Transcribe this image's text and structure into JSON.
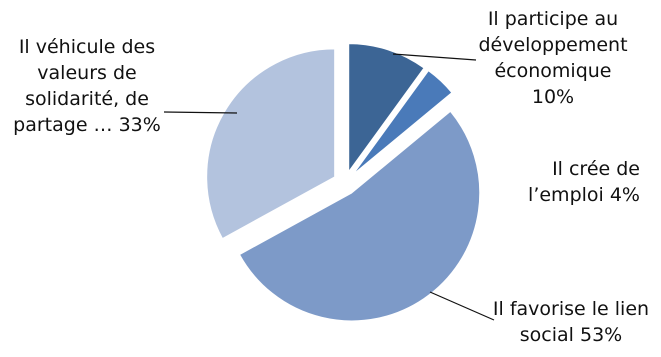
{
  "chart_data": {
    "type": "pie",
    "exploded": true,
    "slices": [
      {
        "label_lines": [
          "Il participe au",
          "développement",
          "économique",
          "10%"
        ],
        "value": 10,
        "color": "#3c6595"
      },
      {
        "label_lines": [
          "Il crée de",
          "l’emploi 4%"
        ],
        "value": 4,
        "color": "#4a7ab9"
      },
      {
        "label_lines": [
          "Il favorise le lien",
          "social  53%"
        ],
        "value": 53,
        "color": "#7d9ac8"
      },
      {
        "label_lines": [
          "Il véhicule des",
          "valeurs de",
          "solidarité, de",
          "partage … 33%"
        ],
        "value": 33,
        "color": "#b3c3de"
      }
    ],
    "legend": "none"
  }
}
